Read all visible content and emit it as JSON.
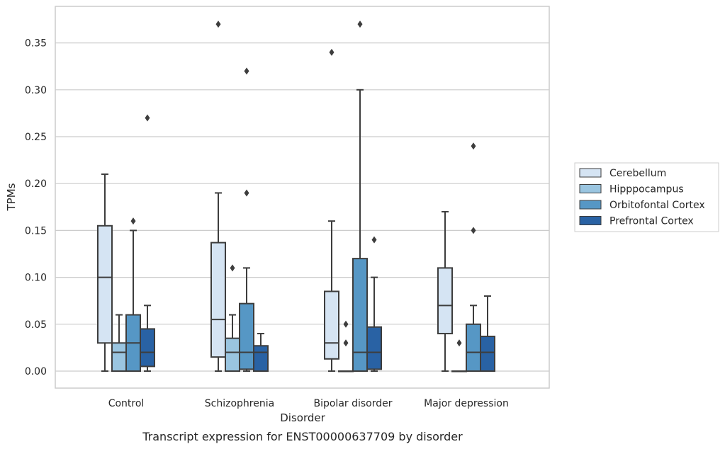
{
  "chart_data": {
    "type": "box",
    "title": "",
    "caption": "Transcript expression for ENST00000637709 by disorder",
    "xlabel": "Disorder",
    "ylabel": "TPMs",
    "ylim": [
      -0.018,
      0.389
    ],
    "yticks": [
      0.0,
      0.05,
      0.1,
      0.15,
      0.2,
      0.25,
      0.3,
      0.35
    ],
    "ytick_labels": [
      "0.00",
      "0.05",
      "0.10",
      "0.15",
      "0.20",
      "0.25",
      "0.30",
      "0.35"
    ],
    "grid": "horizontal",
    "legend_position": "right",
    "categories": [
      "Control",
      "Schizophrenia",
      "Bipolar disorder",
      "Major depression"
    ],
    "series": [
      {
        "name": "Cerebellum",
        "color": "#d5e4f3",
        "boxes": [
          {
            "whisker_low": 0.0,
            "q1": 0.03,
            "median": 0.1,
            "q3": 0.155,
            "whisker_high": 0.21,
            "outliers": []
          },
          {
            "whisker_low": 0.0,
            "q1": 0.015,
            "median": 0.055,
            "q3": 0.137,
            "whisker_high": 0.19,
            "outliers": [
              0.37
            ]
          },
          {
            "whisker_low": 0.0,
            "q1": 0.013,
            "median": 0.03,
            "q3": 0.085,
            "whisker_high": 0.16,
            "outliers": [
              0.34
            ]
          },
          {
            "whisker_low": 0.0,
            "q1": 0.04,
            "median": 0.07,
            "q3": 0.11,
            "whisker_high": 0.17,
            "outliers": []
          }
        ]
      },
      {
        "name": "Hipppocampus",
        "color": "#9ac5e0",
        "boxes": [
          {
            "whisker_low": 0.0,
            "q1": 0.0,
            "median": 0.02,
            "q3": 0.03,
            "whisker_high": 0.06,
            "outliers": []
          },
          {
            "whisker_low": 0.0,
            "q1": 0.0,
            "median": 0.02,
            "q3": 0.035,
            "whisker_high": 0.06,
            "outliers": [
              0.11
            ]
          },
          {
            "whisker_low": 0.0,
            "q1": 0.0,
            "median": 0.0,
            "q3": 0.0,
            "whisker_high": 0.0,
            "outliers": [
              0.03,
              0.05
            ]
          },
          {
            "whisker_low": 0.0,
            "q1": 0.0,
            "median": 0.0,
            "q3": 0.0,
            "whisker_high": 0.0,
            "outliers": [
              0.03
            ]
          }
        ]
      },
      {
        "name": "Orbitofontal Cortex",
        "color": "#5697c5",
        "boxes": [
          {
            "whisker_low": 0.0,
            "q1": 0.0,
            "median": 0.03,
            "q3": 0.06,
            "whisker_high": 0.15,
            "outliers": [
              0.16
            ]
          },
          {
            "whisker_low": 0.0,
            "q1": 0.002,
            "median": 0.02,
            "q3": 0.072,
            "whisker_high": 0.11,
            "outliers": [
              0.19,
              0.32
            ]
          },
          {
            "whisker_low": 0.0,
            "q1": 0.0,
            "median": 0.02,
            "q3": 0.12,
            "whisker_high": 0.3,
            "outliers": [
              0.37
            ]
          },
          {
            "whisker_low": 0.0,
            "q1": 0.0,
            "median": 0.02,
            "q3": 0.05,
            "whisker_high": 0.07,
            "outliers": [
              0.15,
              0.24
            ]
          }
        ]
      },
      {
        "name": "Prefrontal Cortex",
        "color": "#2962a4",
        "boxes": [
          {
            "whisker_low": 0.0,
            "q1": 0.005,
            "median": 0.02,
            "q3": 0.045,
            "whisker_high": 0.07,
            "outliers": [
              0.27
            ]
          },
          {
            "whisker_low": 0.0,
            "q1": 0.0,
            "median": 0.02,
            "q3": 0.027,
            "whisker_high": 0.04,
            "outliers": []
          },
          {
            "whisker_low": 0.0,
            "q1": 0.002,
            "median": 0.02,
            "q3": 0.047,
            "whisker_high": 0.1,
            "outliers": [
              0.14
            ]
          },
          {
            "whisker_low": 0.0,
            "q1": 0.0,
            "median": 0.02,
            "q3": 0.037,
            "whisker_high": 0.08,
            "outliers": []
          }
        ]
      }
    ]
  }
}
